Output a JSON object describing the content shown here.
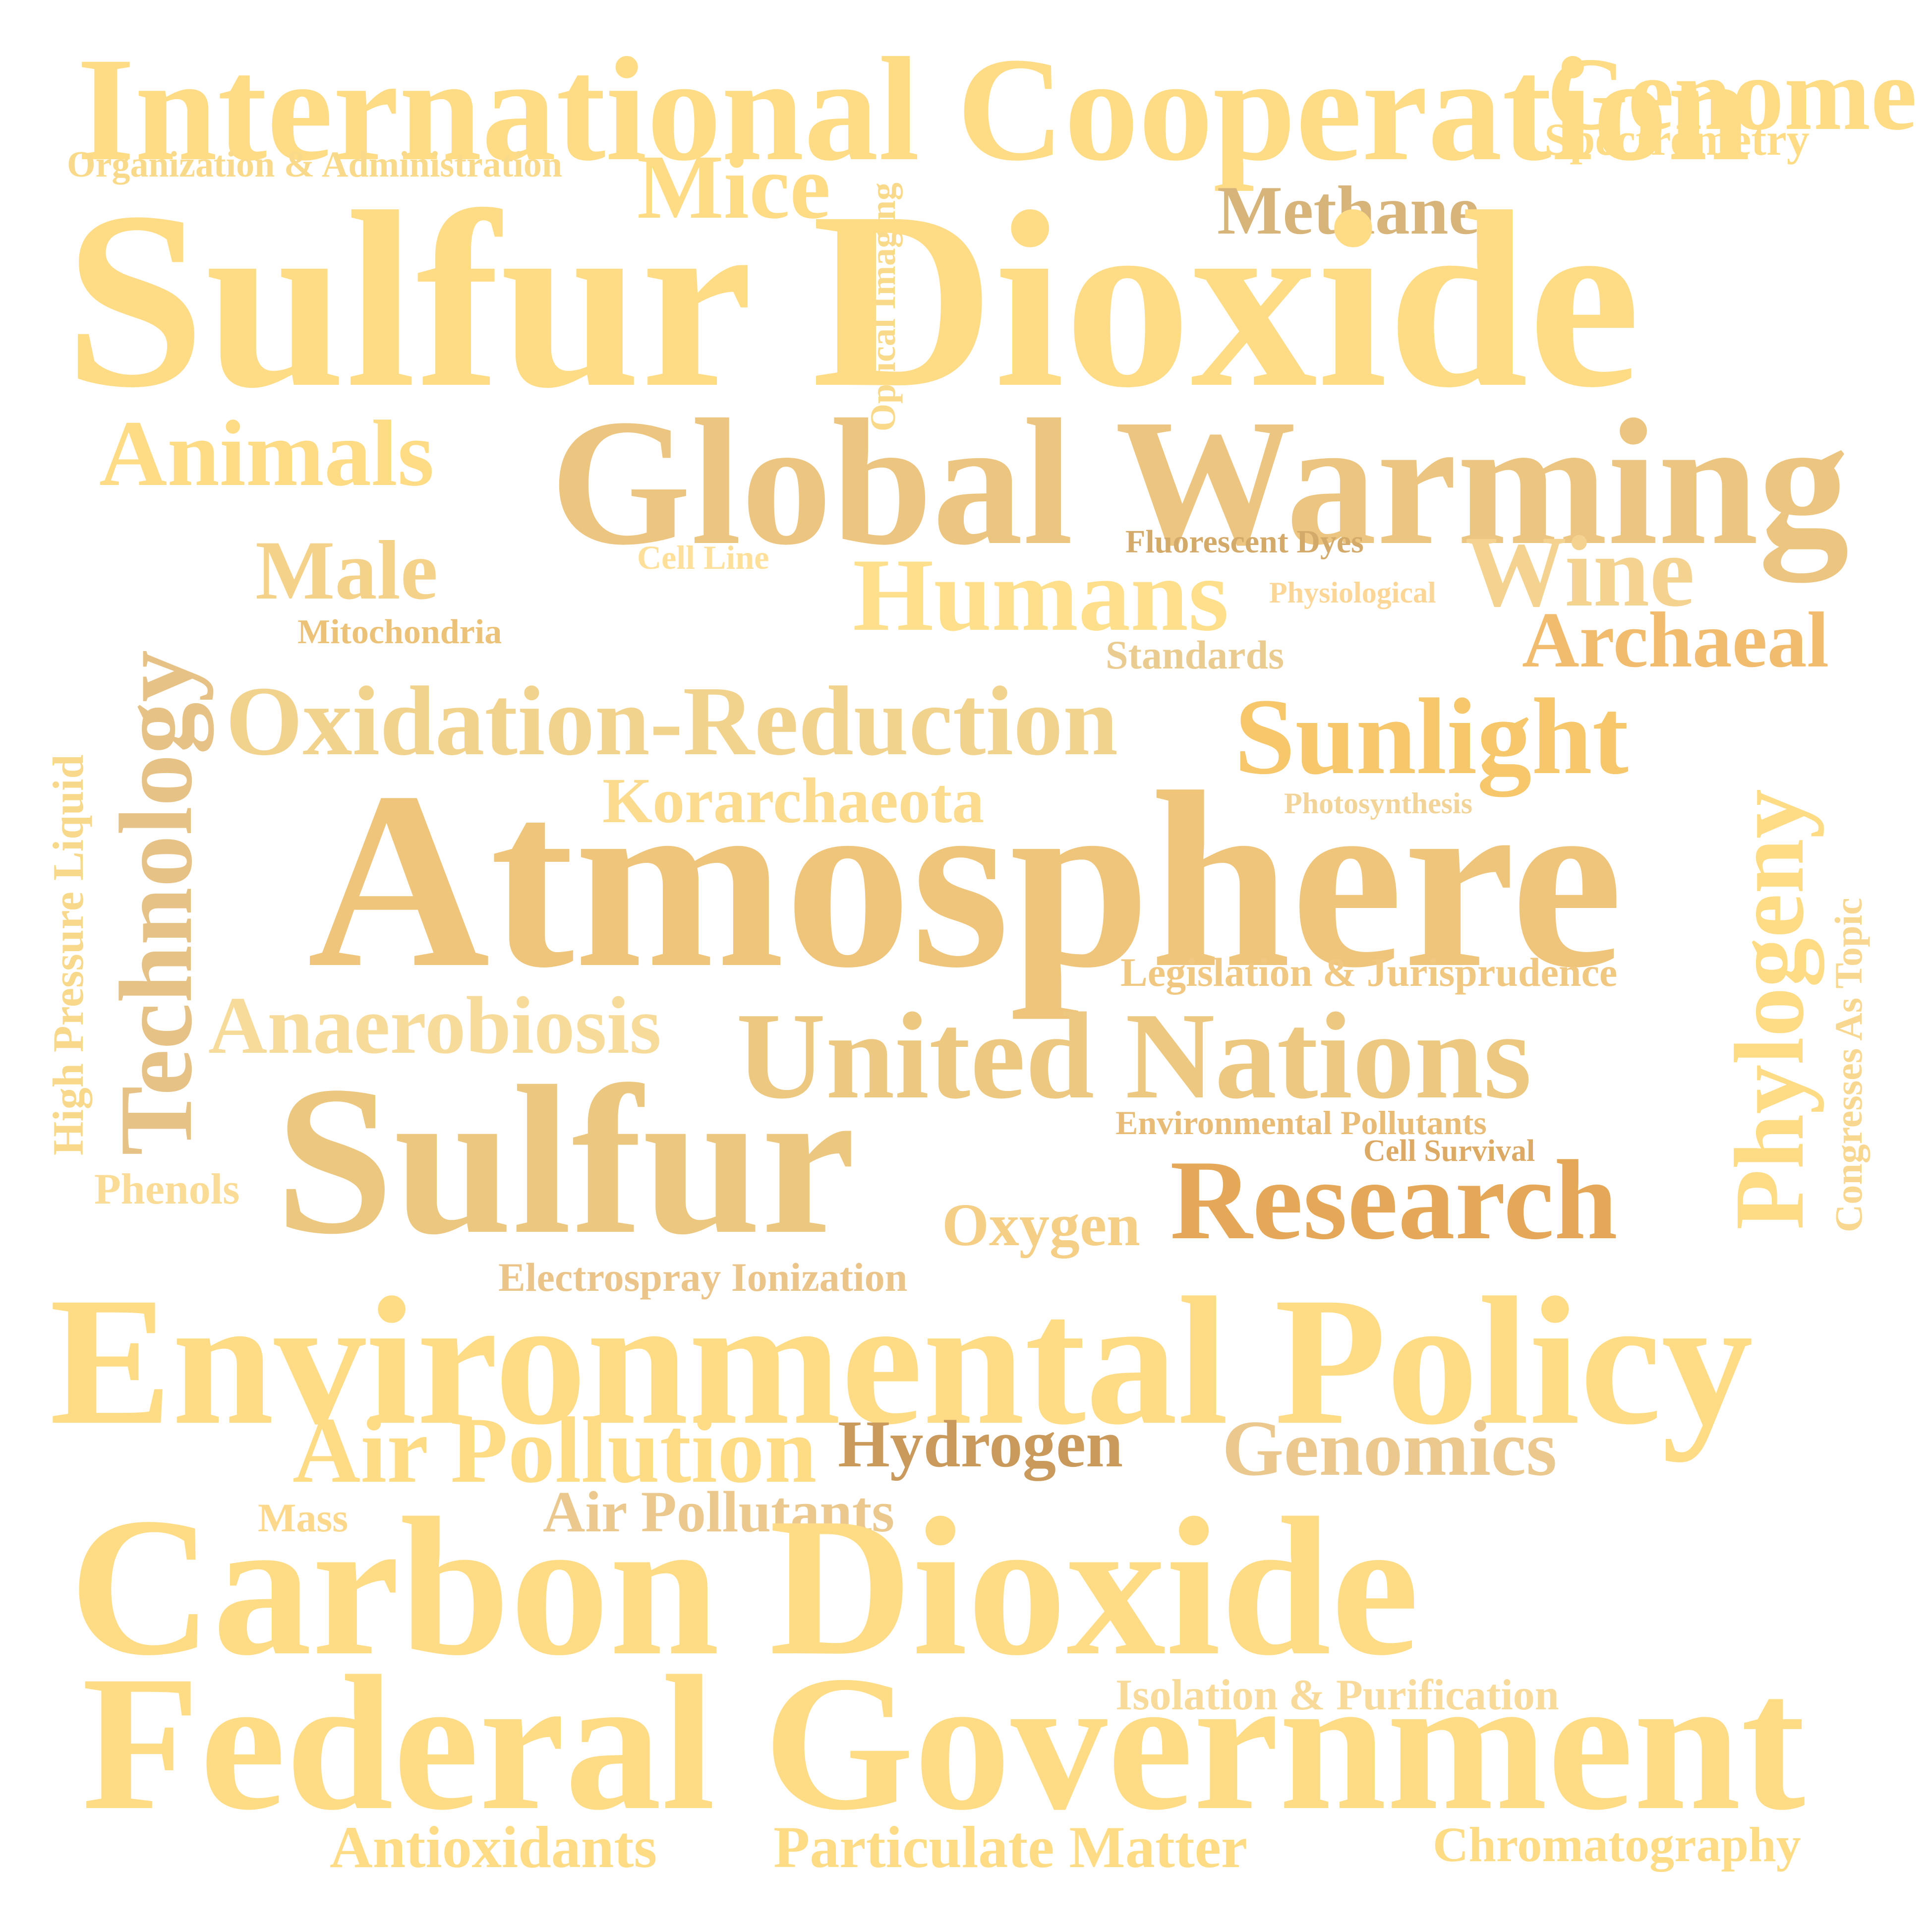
{
  "words": [
    {
      "text": "International Cooperation",
      "color": "#fedc86"
    },
    {
      "text": "Genome",
      "color": "#fedc86"
    },
    {
      "text": "Spectrometry",
      "color": "#fedc86"
    },
    {
      "text": "Organization & Administration",
      "color": "#f9d98a"
    },
    {
      "text": "Mice",
      "color": "#fedc86"
    },
    {
      "text": "Optical Imaging",
      "color": "#f9d98a"
    },
    {
      "text": "Methane",
      "color": "#d7b47a"
    },
    {
      "text": "Sulfur Dioxide",
      "color": "#fedc86"
    },
    {
      "text": "Animals",
      "color": "#fedc86"
    },
    {
      "text": "Global Warming",
      "color": "#ecc580"
    },
    {
      "text": "Technology",
      "color": "#e6c286"
    },
    {
      "text": "Male",
      "color": "#f5d28a"
    },
    {
      "text": "Mitochondria",
      "color": "#ebc278"
    },
    {
      "text": "Cell Line",
      "color": "#fee09a"
    },
    {
      "text": "Fluorescent Dyes",
      "color": "#d4aa6a"
    },
    {
      "text": "Humans",
      "color": "#fee08c"
    },
    {
      "text": "Physiological",
      "color": "#fbd696"
    },
    {
      "text": "Wine",
      "color": "#f4d290"
    },
    {
      "text": "Standards",
      "color": "#eacb90"
    },
    {
      "text": "Archaeal",
      "color": "#f2bc6e"
    },
    {
      "text": "High Pressure Liquid",
      "color": "#f8d88a"
    },
    {
      "text": "Oxidation-Reduction",
      "color": "#f2d38e"
    },
    {
      "text": "Sunlight",
      "color": "#f7c76c"
    },
    {
      "text": "Korarchaeota",
      "color": "#fbdb8e"
    },
    {
      "text": "Photosynthesis",
      "color": "#f2d398"
    },
    {
      "text": "Phylogeny",
      "color": "#fedc86"
    },
    {
      "text": "Atmosphere",
      "color": "#eec57a"
    },
    {
      "text": "Congresses As Topic",
      "color": "#f8d890"
    },
    {
      "text": "Legislation & Jurisprudence",
      "color": "#f1c882"
    },
    {
      "text": "Anaerobiosis",
      "color": "#f7db9a"
    },
    {
      "text": "United Nations",
      "color": "#ecc880"
    },
    {
      "text": "Sulfur",
      "color": "#ecc780"
    },
    {
      "text": "Environmental Pollutants",
      "color": "#e8bc76"
    },
    {
      "text": "Cell Survival",
      "color": "#dcaa64"
    },
    {
      "text": "Phenols",
      "color": "#fadc96"
    },
    {
      "text": "Research",
      "color": "#e4a858"
    },
    {
      "text": "Oxygen",
      "color": "#f5cf86"
    },
    {
      "text": "Electrospray Ionization",
      "color": "#ebc48a"
    },
    {
      "text": "Environmental Policy",
      "color": "#fedc86"
    },
    {
      "text": "Air Pollution",
      "color": "#fedc86"
    },
    {
      "text": "Hydrogen",
      "color": "#c99a5c"
    },
    {
      "text": "Genomics",
      "color": "#ebc88e"
    },
    {
      "text": "Mass",
      "color": "#fcd88c"
    },
    {
      "text": "Air Pollutants",
      "color": "#ebc98e"
    },
    {
      "text": "Carbon Dioxide",
      "color": "#fedc86"
    },
    {
      "text": "Isolation & Purification",
      "color": "#f8da9a"
    },
    {
      "text": "Federal Government",
      "color": "#fedc86"
    },
    {
      "text": "Antioxidants",
      "color": "#fedc86"
    },
    {
      "text": "Particulate Matter",
      "color": "#fedc86"
    },
    {
      "text": "Chromatography",
      "color": "#fedc86"
    }
  ]
}
